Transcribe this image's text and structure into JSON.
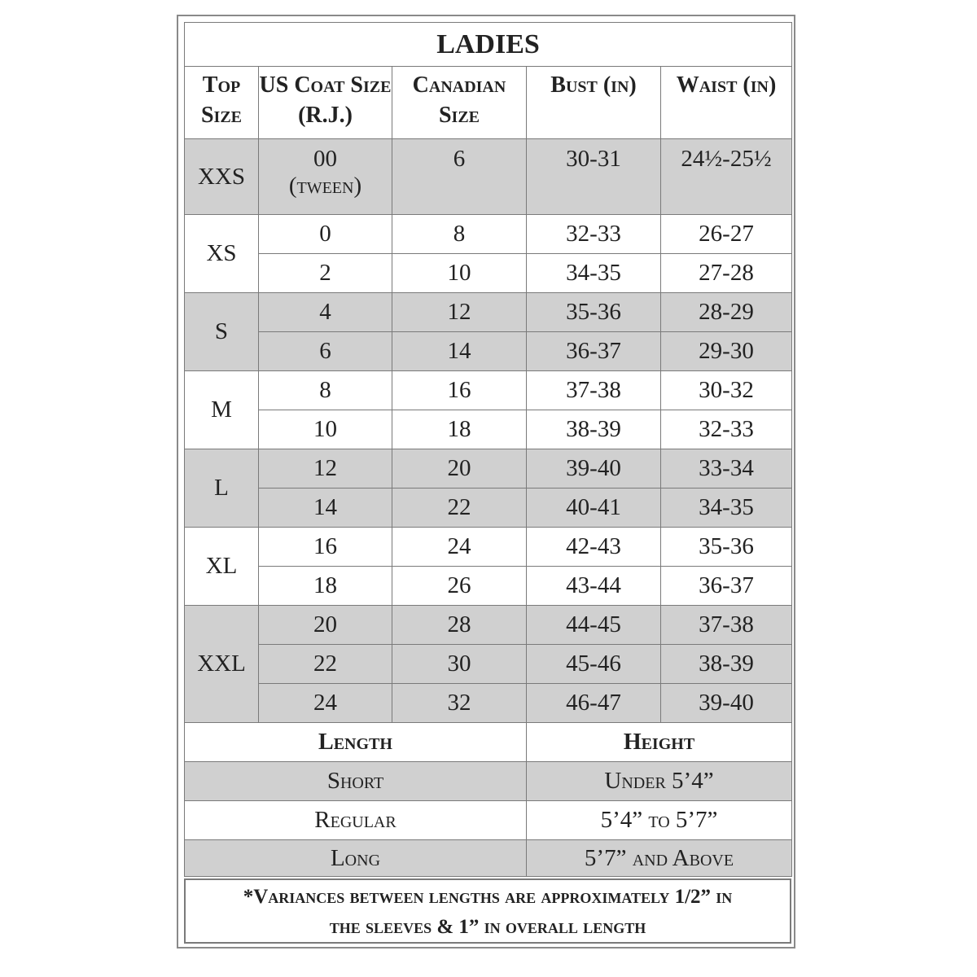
{
  "title": "LADIES",
  "headers": [
    "Top Size",
    "US Coat Size (R.J.)",
    "Canadian Size",
    "Bust (in)",
    "Waist (in)"
  ],
  "groups": [
    {
      "top": "XXS",
      "shaded": true,
      "rows": [
        [
          "00",
          "6",
          "30-31",
          "24½-25½"
        ]
      ],
      "note": "(tween)"
    },
    {
      "top": "XS",
      "shaded": false,
      "rows": [
        [
          "0",
          "8",
          "32-33",
          "26-27"
        ],
        [
          "2",
          "10",
          "34-35",
          "27-28"
        ]
      ]
    },
    {
      "top": "S",
      "shaded": true,
      "rows": [
        [
          "4",
          "12",
          "35-36",
          "28-29"
        ],
        [
          "6",
          "14",
          "36-37",
          "29-30"
        ]
      ]
    },
    {
      "top": "M",
      "shaded": false,
      "rows": [
        [
          "8",
          "16",
          "37-38",
          "30-32"
        ],
        [
          "10",
          "18",
          "38-39",
          "32-33"
        ]
      ]
    },
    {
      "top": "L",
      "shaded": true,
      "rows": [
        [
          "12",
          "20",
          "39-40",
          "33-34"
        ],
        [
          "14",
          "22",
          "40-41",
          "34-35"
        ]
      ]
    },
    {
      "top": "XL",
      "shaded": false,
      "rows": [
        [
          "16",
          "24",
          "42-43",
          "35-36"
        ],
        [
          "18",
          "26",
          "43-44",
          "36-37"
        ]
      ]
    },
    {
      "top": "XXL",
      "shaded": true,
      "rows": [
        [
          "20",
          "28",
          "44-45",
          "37-38"
        ],
        [
          "22",
          "30",
          "45-46",
          "38-39"
        ],
        [
          "24",
          "32",
          "46-47",
          "39-40"
        ]
      ]
    }
  ],
  "length_table": {
    "headers": [
      "Length",
      "Height"
    ],
    "rows": [
      {
        "length": "Short",
        "height": "Under 5’4”",
        "shaded": true
      },
      {
        "length": "Regular",
        "height": "5’4” to 5’7”",
        "shaded": false
      },
      {
        "length": "Long",
        "height": "5’7” and Above",
        "shaded": true
      }
    ]
  },
  "footnote": {
    "line1": "*Variances between lengths are approximately 1/2” in",
    "line2": "the sleeves & 1” in overall length"
  },
  "colors": {
    "shade": "#d0d0d0",
    "border": "#7a7a7a"
  }
}
